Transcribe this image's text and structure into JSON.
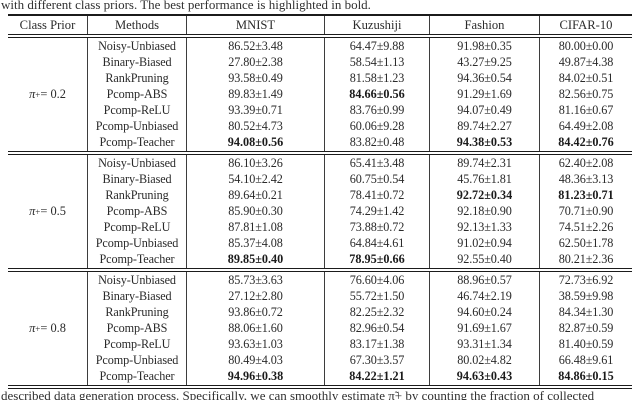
{
  "caption_top": "with different class priors. The best performance is highlighted in bold.",
  "caption_bottom": "described data generation process. Specifically, we can smoothly estimate π̃+ by counting the fraction of collected",
  "table": {
    "headers": [
      "Class Prior",
      "Methods",
      "MNIST",
      "Kuzushiji",
      "Fashion",
      "CIFAR-10"
    ],
    "blocks": [
      {
        "prior": {
          "symbol": "π",
          "subscript": "+",
          "rest": " = 0.2"
        },
        "rows": [
          {
            "method": "Noisy-Unbiased",
            "values": [
              "86.52±3.48",
              "64.47±9.88",
              "91.98±0.35",
              "80.00±0.00"
            ],
            "bold": [
              false,
              false,
              false,
              false
            ]
          },
          {
            "method": "Binary-Biased",
            "values": [
              "27.80±2.38",
              "58.54±1.13",
              "43.27±9.25",
              "49.87±4.38"
            ],
            "bold": [
              false,
              false,
              false,
              false
            ]
          },
          {
            "method": "RankPruning",
            "values": [
              "93.58±0.49",
              "81.58±1.23",
              "94.36±0.54",
              "84.02±0.51"
            ],
            "bold": [
              false,
              false,
              false,
              false
            ]
          },
          {
            "method": "Pcomp-ABS",
            "values": [
              "89.83±1.49",
              "84.66±0.56",
              "91.29±1.69",
              "82.56±0.75"
            ],
            "bold": [
              false,
              true,
              false,
              false
            ]
          },
          {
            "method": "Pcomp-ReLU",
            "values": [
              "93.39±0.71",
              "83.76±0.99",
              "94.07±0.49",
              "81.16±0.67"
            ],
            "bold": [
              false,
              false,
              false,
              false
            ]
          },
          {
            "method": "Pcomp-Unbiased",
            "values": [
              "80.52±4.73",
              "60.06±9.28",
              "89.74±2.27",
              "64.49±2.08"
            ],
            "bold": [
              false,
              false,
              false,
              false
            ]
          },
          {
            "method": "Pcomp-Teacher",
            "values": [
              "94.08±0.56",
              "83.82±0.48",
              "94.38±0.53",
              "84.42±0.76"
            ],
            "bold": [
              true,
              false,
              true,
              true
            ]
          }
        ]
      },
      {
        "prior": {
          "symbol": "π",
          "subscript": "+",
          "rest": " = 0.5"
        },
        "rows": [
          {
            "method": "Noisy-Unbiased",
            "values": [
              "86.10±3.26",
              "65.41±3.48",
              "89.74±2.31",
              "62.40±2.08"
            ],
            "bold": [
              false,
              false,
              false,
              false
            ]
          },
          {
            "method": "Binary-Biased",
            "values": [
              "54.10±2.42",
              "60.75±0.54",
              "45.76±1.81",
              "48.36±3.13"
            ],
            "bold": [
              false,
              false,
              false,
              false
            ]
          },
          {
            "method": "RankPruning",
            "values": [
              "89.64±0.21",
              "78.41±0.72",
              "92.72±0.34",
              "81.23±0.71"
            ],
            "bold": [
              false,
              false,
              true,
              true
            ]
          },
          {
            "method": "Pcomp-ABS",
            "values": [
              "85.90±0.30",
              "74.29±1.42",
              "92.18±0.90",
              "70.71±0.90"
            ],
            "bold": [
              false,
              false,
              false,
              false
            ]
          },
          {
            "method": "Pcomp-ReLU",
            "values": [
              "87.81±1.08",
              "73.88±0.72",
              "92.13±1.33",
              "74.51±2.26"
            ],
            "bold": [
              false,
              false,
              false,
              false
            ]
          },
          {
            "method": "Pcomp-Unbiased",
            "values": [
              "85.37±4.08",
              "64.84±4.61",
              "91.02±0.94",
              "62.50±1.78"
            ],
            "bold": [
              false,
              false,
              false,
              false
            ]
          },
          {
            "method": "Pcomp-Teacher",
            "values": [
              "89.85±0.40",
              "78.95±0.66",
              "92.55±0.40",
              "80.21±2.36"
            ],
            "bold": [
              true,
              true,
              false,
              false
            ]
          }
        ]
      },
      {
        "prior": {
          "symbol": "π",
          "subscript": "+",
          "rest": " = 0.8"
        },
        "rows": [
          {
            "method": "Noisy-Unbiased",
            "values": [
              "85.73±3.63",
              "76.60±4.06",
              "88.96±0.57",
              "72.73±6.92"
            ],
            "bold": [
              false,
              false,
              false,
              false
            ]
          },
          {
            "method": "Binary-Biased",
            "values": [
              "27.12±2.80",
              "55.72±1.50",
              "46.74±2.19",
              "38.59±9.98"
            ],
            "bold": [
              false,
              false,
              false,
              false
            ]
          },
          {
            "method": "RankPruning",
            "values": [
              "93.86±0.72",
              "82.25±2.32",
              "94.60±0.24",
              "84.34±1.30"
            ],
            "bold": [
              false,
              false,
              false,
              false
            ]
          },
          {
            "method": "Pcomp-ABS",
            "values": [
              "88.06±1.60",
              "82.96±0.54",
              "91.69±1.67",
              "82.87±0.59"
            ],
            "bold": [
              false,
              false,
              false,
              false
            ]
          },
          {
            "method": "Pcomp-ReLU",
            "values": [
              "93.63±1.03",
              "83.17±1.38",
              "93.31±1.34",
              "81.40±0.59"
            ],
            "bold": [
              false,
              false,
              false,
              false
            ]
          },
          {
            "method": "Pcomp-Unbiased",
            "values": [
              "80.49±4.03",
              "67.30±3.57",
              "80.02±4.82",
              "66.48±9.61"
            ],
            "bold": [
              false,
              false,
              false,
              false
            ]
          },
          {
            "method": "Pcomp-Teacher",
            "values": [
              "94.96±0.38",
              "84.22±1.21",
              "94.63±0.43",
              "84.86±0.15"
            ],
            "bold": [
              true,
              true,
              true,
              true
            ]
          }
        ]
      }
    ]
  }
}
